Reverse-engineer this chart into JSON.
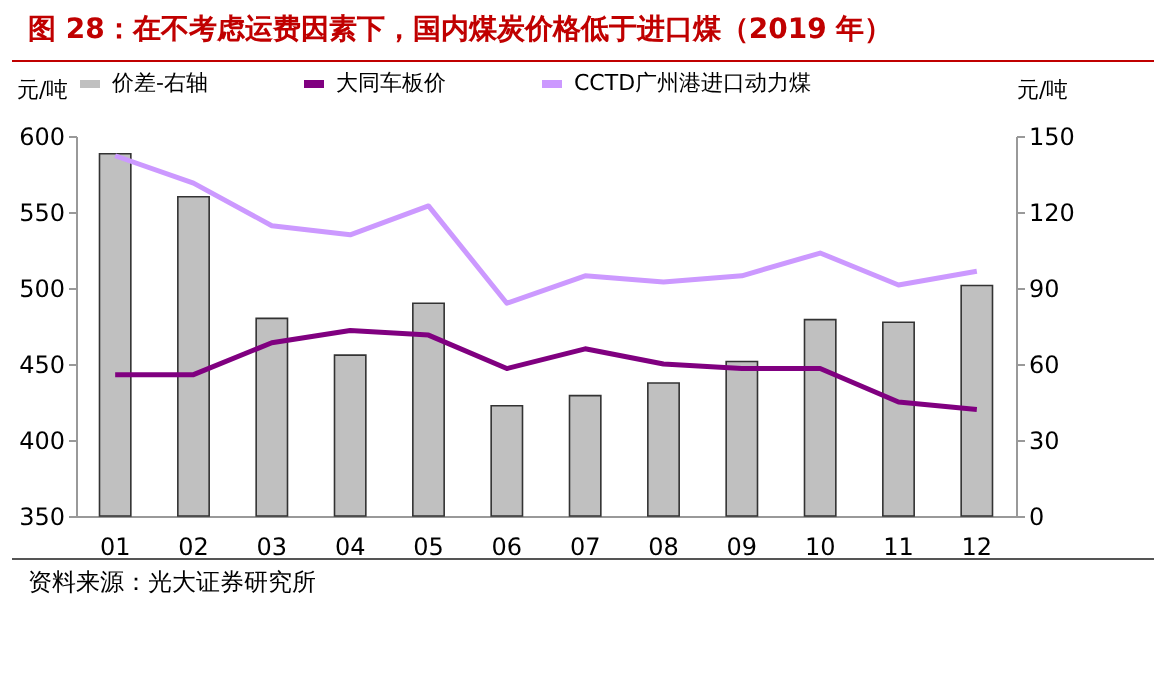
{
  "chart_data": {
    "type": "bar",
    "title": "图 28：在不考虑运费因素下，国内煤炭价格低于进口煤（2019 年）",
    "ylabel": "元/吨",
    "y2label": "元/吨",
    "categories": [
      "01",
      "02",
      "03",
      "04",
      "05",
      "06",
      "07",
      "08",
      "09",
      "10",
      "11",
      "12"
    ],
    "series": [
      {
        "name": "价差-右轴",
        "axis": "y2",
        "color": "#c0c0c0",
        "values": [
          143,
          126,
          78,
          63.5,
          84,
          43.5,
          47.5,
          52.5,
          61,
          77.5,
          76.5,
          91
        ]
      },
      {
        "name": "大同车板价",
        "type": "line",
        "color": "#800080",
        "values": [
          443,
          443,
          464,
          472,
          469,
          447,
          460,
          450,
          447,
          447,
          425,
          420
        ]
      },
      {
        "name": "CCTD广州港进口动力煤",
        "type": "line",
        "color": "#cc99ff",
        "values": [
          587,
          569,
          541,
          535,
          554,
          490,
          508,
          504,
          508,
          523,
          502,
          511
        ]
      }
    ],
    "ylim": [
      350,
      600
    ],
    "yticks": [
      350,
      400,
      450,
      500,
      550,
      600
    ],
    "y2lim": [
      0,
      150
    ],
    "y2ticks": [
      0,
      30,
      60,
      90,
      120,
      150
    ],
    "grid": false,
    "legend": "top",
    "annotations": [
      "资料来源：光大证券研究所"
    ]
  }
}
